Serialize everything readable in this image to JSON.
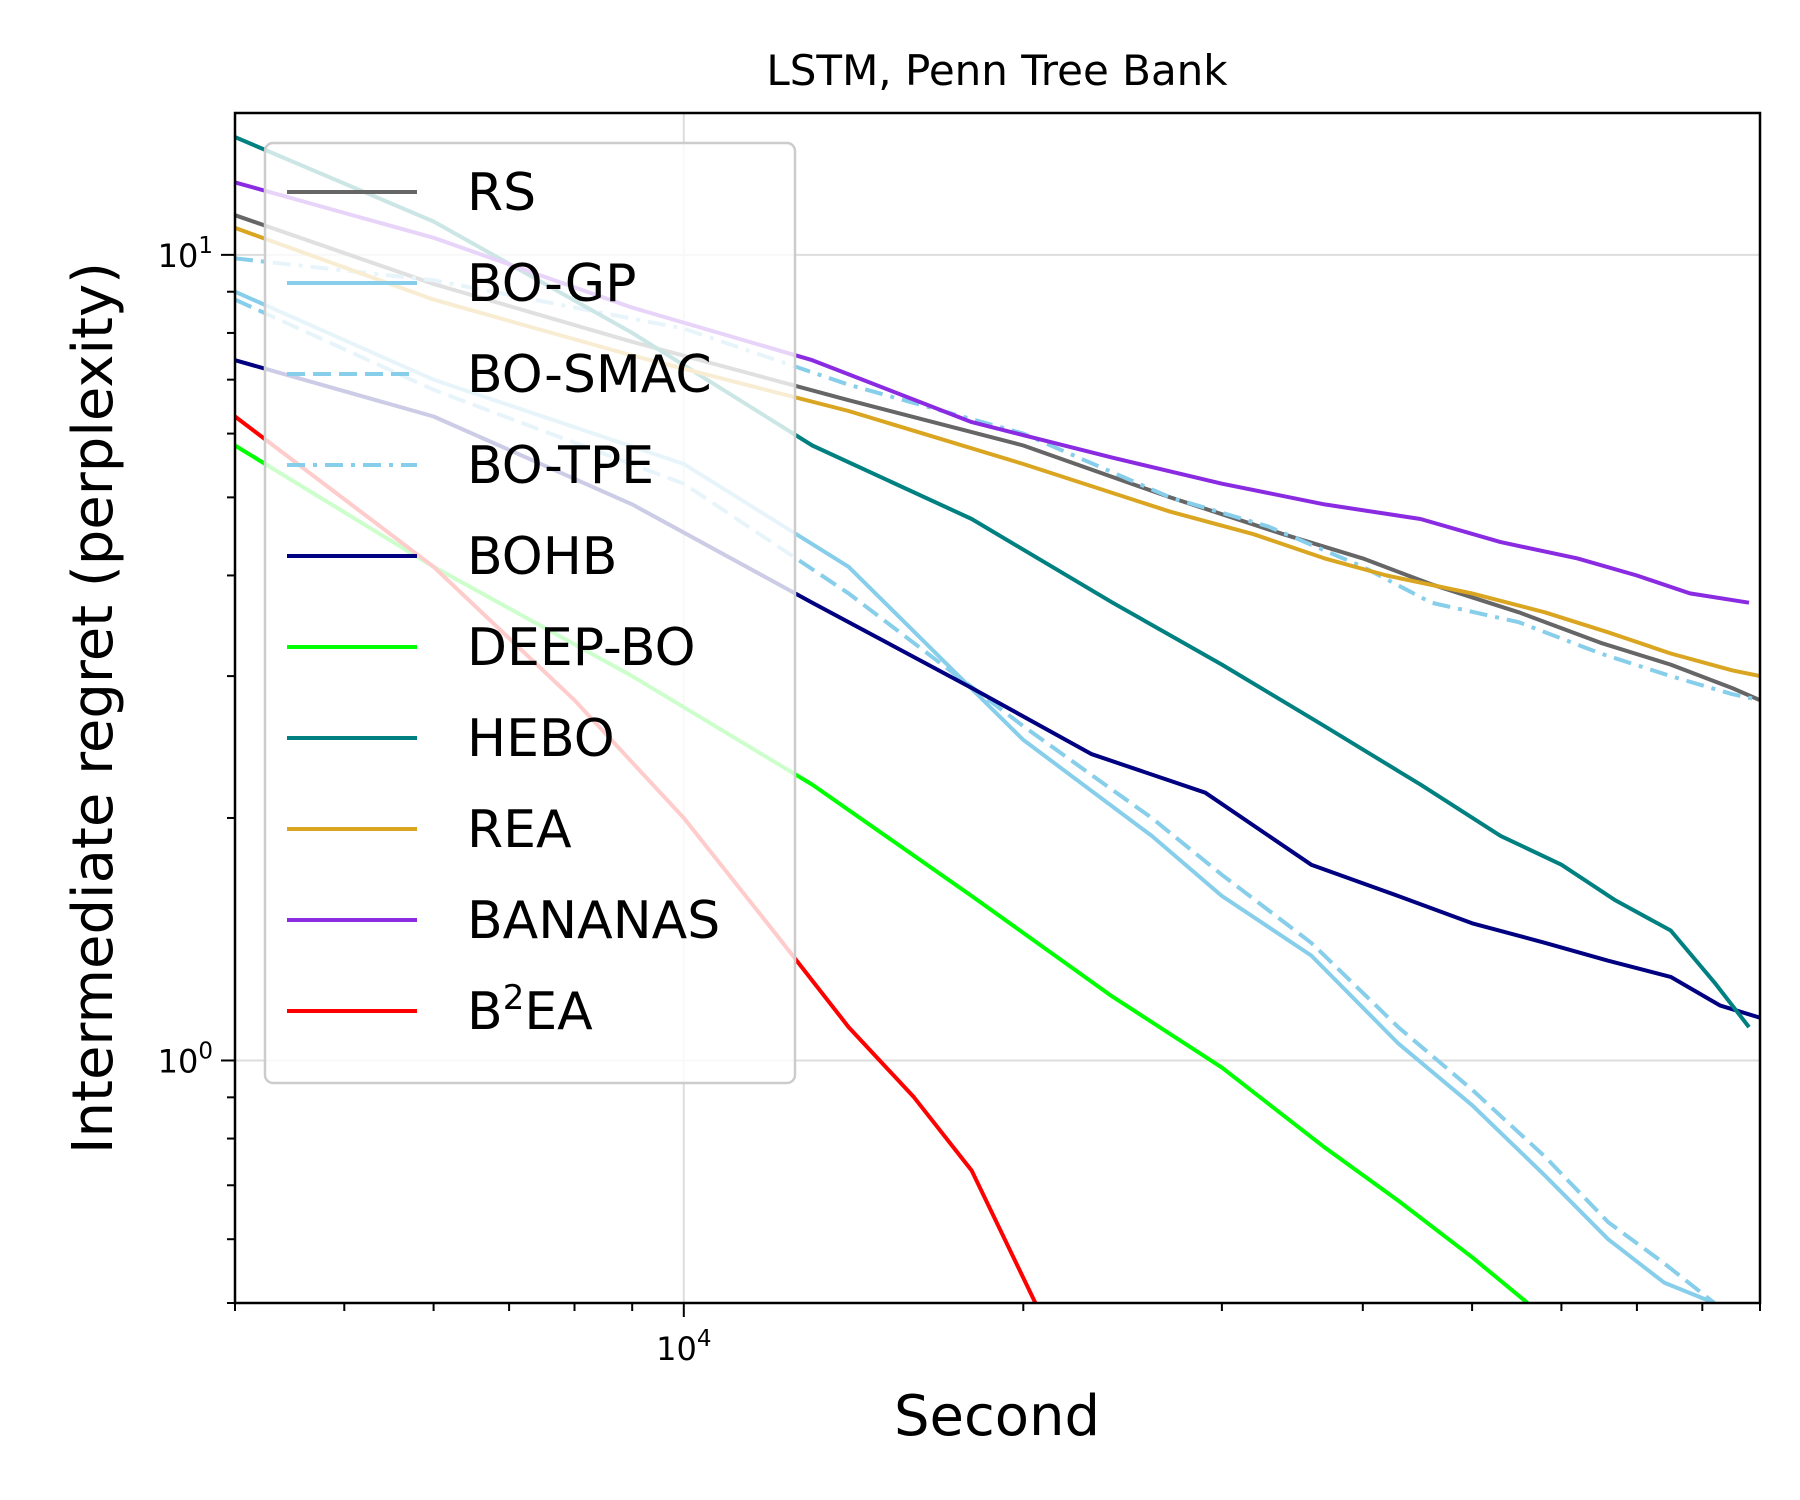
{
  "chart_data": {
    "type": "line",
    "title": "LSTM, Penn Tree Bank",
    "xlabel": "Second",
    "ylabel": "Intermediate regret (perplexity)",
    "x_scale": "log",
    "y_scale": "log",
    "xlim": [
      4000,
      90000
    ],
    "ylim": [
      0.5,
      15
    ],
    "grid": true,
    "legend_position": "upper-left",
    "x_ticks": [
      {
        "value": 10000,
        "base": "10",
        "exp": "4"
      }
    ],
    "y_ticks": [
      {
        "value": 1,
        "base": "10",
        "exp": "0"
      },
      {
        "value": 10,
        "base": "10",
        "exp": "1"
      }
    ],
    "series": [
      {
        "name": "RS",
        "color": "#666666",
        "dash": "solid",
        "x": [
          4000,
          6000,
          9000,
          14000,
          20000,
          27000,
          34000,
          40000,
          46000,
          55000,
          65000,
          75000,
          85000,
          90000
        ],
        "y": [
          11.2,
          9.2,
          7.8,
          6.6,
          5.8,
          5.0,
          4.5,
          4.2,
          3.9,
          3.6,
          3.3,
          3.1,
          2.9,
          2.8
        ]
      },
      {
        "name": "BO-GP",
        "color": "#87ceeb",
        "dash": "solid",
        "x": [
          4000,
          6000,
          10000,
          14000,
          20000,
          26000,
          30000,
          36000,
          43000,
          50000,
          58000,
          66000,
          74000,
          82000
        ],
        "y": [
          9.0,
          7.0,
          5.5,
          4.1,
          2.5,
          1.9,
          1.6,
          1.35,
          1.05,
          0.88,
          0.72,
          0.6,
          0.53,
          0.5
        ]
      },
      {
        "name": "BO-SMAC",
        "color": "#87ceeb",
        "dash": "dashed",
        "x": [
          4000,
          6000,
          10000,
          14000,
          20000,
          26000,
          30000,
          36000,
          43000,
          50000,
          58000,
          66000,
          74000,
          82000
        ],
        "y": [
          8.8,
          6.8,
          5.2,
          3.8,
          2.6,
          2.0,
          1.7,
          1.4,
          1.1,
          0.92,
          0.76,
          0.63,
          0.56,
          0.5
        ]
      },
      {
        "name": "BO-TPE",
        "color": "#87ceeb",
        "dash": "dashdot",
        "x": [
          4000,
          6000,
          10000,
          14000,
          20000,
          27000,
          33000,
          40000,
          46000,
          55000,
          65000,
          75000,
          85000,
          90000
        ],
        "y": [
          9.9,
          9.3,
          8.1,
          6.9,
          6.0,
          5.0,
          4.6,
          4.1,
          3.7,
          3.5,
          3.2,
          3.0,
          2.85,
          2.8
        ]
      },
      {
        "name": "BOHB",
        "color": "#000080",
        "dash": "solid",
        "x": [
          4000,
          6000,
          9000,
          13000,
          18000,
          23000,
          29000,
          36000,
          43000,
          50000,
          58000,
          66000,
          75000,
          83000,
          90000
        ],
        "y": [
          7.4,
          6.3,
          4.9,
          3.7,
          2.9,
          2.4,
          2.15,
          1.75,
          1.6,
          1.48,
          1.4,
          1.33,
          1.27,
          1.17,
          1.13
        ]
      },
      {
        "name": "DEEP-BO",
        "color": "#00ff00",
        "dash": "solid",
        "x": [
          4000,
          6000,
          9000,
          13000,
          18000,
          24000,
          30000,
          37000,
          43000,
          50000,
          56000
        ],
        "y": [
          5.8,
          4.1,
          3.0,
          2.2,
          1.6,
          1.2,
          0.98,
          0.78,
          0.67,
          0.57,
          0.5
        ]
      },
      {
        "name": "HEBO",
        "color": "#008080",
        "dash": "solid",
        "x": [
          4000,
          6000,
          9000,
          13000,
          18000,
          24000,
          30000,
          37000,
          45000,
          53000,
          60000,
          67000,
          75000,
          82000,
          88000
        ],
        "y": [
          14.0,
          11.0,
          8.0,
          5.8,
          4.7,
          3.7,
          3.1,
          2.6,
          2.2,
          1.9,
          1.75,
          1.58,
          1.45,
          1.25,
          1.1
        ]
      },
      {
        "name": "REA",
        "color": "#daa520",
        "dash": "solid",
        "x": [
          4000,
          6000,
          9000,
          14000,
          20000,
          27000,
          32000,
          37000,
          42000,
          50000,
          58000,
          66000,
          75000,
          85000,
          90000
        ],
        "y": [
          10.8,
          8.8,
          7.5,
          6.4,
          5.5,
          4.8,
          4.5,
          4.2,
          4.0,
          3.8,
          3.6,
          3.4,
          3.2,
          3.05,
          3.0
        ]
      },
      {
        "name": "BANANAS",
        "color": "#8a2be2",
        "dash": "solid",
        "x": [
          4000,
          6000,
          9000,
          13000,
          18000,
          24000,
          30000,
          37000,
          45000,
          53000,
          62000,
          70000,
          78000,
          88000
        ],
        "y": [
          12.3,
          10.5,
          8.6,
          7.4,
          6.2,
          5.6,
          5.2,
          4.9,
          4.7,
          4.4,
          4.2,
          4.0,
          3.8,
          3.7
        ]
      },
      {
        "name": "B²EA",
        "legend_base": "B",
        "legend_sup": "2",
        "legend_rest": "EA",
        "color": "#ff0000",
        "dash": "solid",
        "x": [
          4000,
          6000,
          8000,
          10000,
          12000,
          14000,
          16000,
          18000,
          20500
        ],
        "y": [
          6.3,
          4.1,
          2.8,
          2.0,
          1.45,
          1.1,
          0.9,
          0.73,
          0.5
        ]
      }
    ]
  }
}
